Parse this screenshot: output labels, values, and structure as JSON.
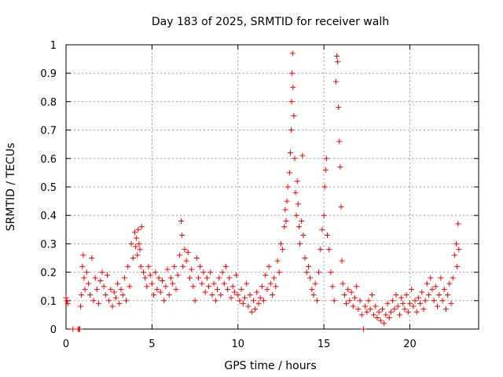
{
  "chart_data": {
    "type": "scatter",
    "title": "Day 183 of 2025, SRMTID for receiver walh",
    "xlabel": "GPS time / hours",
    "ylabel": "SRMTID / TECUs",
    "xlim": [
      0,
      24
    ],
    "ylim": [
      0,
      1
    ],
    "xticks": [
      0,
      5,
      10,
      15,
      20
    ],
    "xtick_labels": [
      "0",
      "5",
      "10",
      "15",
      "20"
    ],
    "yticks": [
      0,
      0.1,
      0.2,
      0.3,
      0.4,
      0.5,
      0.6,
      0.7,
      0.8,
      0.9,
      1
    ],
    "ytick_labels": [
      "0",
      "0.1",
      "0.2",
      "0.3",
      "0.4",
      "0.5",
      "0.6",
      "0.7",
      "0.8",
      "0.9",
      "1"
    ],
    "grid": true,
    "marker": "+",
    "color": "#ff0000",
    "series": [
      {
        "name": "SRMTID",
        "points": [
          [
            0.0,
            0.11
          ],
          [
            0.05,
            0.1
          ],
          [
            0.1,
            0.09
          ],
          [
            0.4,
            0.0
          ],
          [
            0.7,
            0.0
          ],
          [
            0.75,
            0.0
          ],
          [
            0.8,
            0.0
          ],
          [
            0.85,
            0.08
          ],
          [
            0.9,
            0.12
          ],
          [
            0.95,
            0.22
          ],
          [
            1.0,
            0.26
          ],
          [
            1.05,
            0.18
          ],
          [
            1.1,
            0.14
          ],
          [
            1.2,
            0.2
          ],
          [
            1.3,
            0.16
          ],
          [
            1.4,
            0.12
          ],
          [
            1.5,
            0.25
          ],
          [
            1.6,
            0.1
          ],
          [
            1.7,
            0.18
          ],
          [
            1.8,
            0.14
          ],
          [
            1.9,
            0.09
          ],
          [
            2.0,
            0.17
          ],
          [
            2.1,
            0.2
          ],
          [
            2.2,
            0.15
          ],
          [
            2.3,
            0.12
          ],
          [
            2.4,
            0.19
          ],
          [
            2.5,
            0.1
          ],
          [
            2.6,
            0.14
          ],
          [
            2.7,
            0.08
          ],
          [
            2.8,
            0.13
          ],
          [
            2.9,
            0.11
          ],
          [
            3.0,
            0.16
          ],
          [
            3.1,
            0.09
          ],
          [
            3.2,
            0.14
          ],
          [
            3.3,
            0.12
          ],
          [
            3.4,
            0.18
          ],
          [
            3.5,
            0.1
          ],
          [
            3.6,
            0.22
          ],
          [
            3.7,
            0.15
          ],
          [
            3.8,
            0.3
          ],
          [
            3.9,
            0.25
          ],
          [
            4.0,
            0.34
          ],
          [
            4.05,
            0.29
          ],
          [
            4.1,
            0.32
          ],
          [
            4.15,
            0.26
          ],
          [
            4.2,
            0.35
          ],
          [
            4.25,
            0.3
          ],
          [
            4.3,
            0.28
          ],
          [
            4.35,
            0.22
          ],
          [
            4.4,
            0.36
          ],
          [
            4.5,
            0.2
          ],
          [
            4.6,
            0.18
          ],
          [
            4.7,
            0.15
          ],
          [
            4.8,
            0.22
          ],
          [
            4.9,
            0.19
          ],
          [
            5.0,
            0.16
          ],
          [
            5.1,
            0.12
          ],
          [
            5.2,
            0.2
          ],
          [
            5.3,
            0.14
          ],
          [
            5.4,
            0.18
          ],
          [
            5.5,
            0.13
          ],
          [
            5.6,
            0.17
          ],
          [
            5.7,
            0.1
          ],
          [
            5.8,
            0.15
          ],
          [
            5.9,
            0.21
          ],
          [
            6.0,
            0.12
          ],
          [
            6.1,
            0.18
          ],
          [
            6.2,
            0.16
          ],
          [
            6.3,
            0.22
          ],
          [
            6.4,
            0.14
          ],
          [
            6.5,
            0.19
          ],
          [
            6.6,
            0.26
          ],
          [
            6.7,
            0.38
          ],
          [
            6.75,
            0.33
          ],
          [
            6.8,
            0.22
          ],
          [
            6.9,
            0.28
          ],
          [
            7.0,
            0.24
          ],
          [
            7.1,
            0.27
          ],
          [
            7.2,
            0.18
          ],
          [
            7.3,
            0.21
          ],
          [
            7.4,
            0.15
          ],
          [
            7.5,
            0.1
          ],
          [
            7.6,
            0.25
          ],
          [
            7.7,
            0.18
          ],
          [
            7.8,
            0.22
          ],
          [
            7.9,
            0.16
          ],
          [
            8.0,
            0.2
          ],
          [
            8.1,
            0.13
          ],
          [
            8.2,
            0.18
          ],
          [
            8.3,
            0.15
          ],
          [
            8.4,
            0.2
          ],
          [
            8.5,
            0.12
          ],
          [
            8.6,
            0.16
          ],
          [
            8.7,
            0.1
          ],
          [
            8.8,
            0.14
          ],
          [
            8.9,
            0.18
          ],
          [
            9.0,
            0.12
          ],
          [
            9.1,
            0.2
          ],
          [
            9.2,
            0.16
          ],
          [
            9.3,
            0.22
          ],
          [
            9.4,
            0.14
          ],
          [
            9.5,
            0.18
          ],
          [
            9.6,
            0.11
          ],
          [
            9.7,
            0.15
          ],
          [
            9.8,
            0.13
          ],
          [
            9.9,
            0.19
          ],
          [
            10.0,
            0.12
          ],
          [
            10.1,
            0.1
          ],
          [
            10.2,
            0.14
          ],
          [
            10.3,
            0.09
          ],
          [
            10.4,
            0.11
          ],
          [
            10.5,
            0.16
          ],
          [
            10.6,
            0.08
          ],
          [
            10.7,
            0.12
          ],
          [
            10.8,
            0.06
          ],
          [
            10.9,
            0.1
          ],
          [
            11.0,
            0.07
          ],
          [
            11.1,
            0.13
          ],
          [
            11.2,
            0.09
          ],
          [
            11.3,
            0.11
          ],
          [
            11.4,
            0.15
          ],
          [
            11.5,
            0.1
          ],
          [
            11.6,
            0.19
          ],
          [
            11.7,
            0.14
          ],
          [
            11.8,
            0.22
          ],
          [
            11.9,
            0.16
          ],
          [
            12.0,
            0.12
          ],
          [
            12.1,
            0.18
          ],
          [
            12.2,
            0.15
          ],
          [
            12.3,
            0.24
          ],
          [
            12.4,
            0.2
          ],
          [
            12.5,
            0.3
          ],
          [
            12.6,
            0.28
          ],
          [
            12.7,
            0.36
          ],
          [
            12.75,
            0.42
          ],
          [
            12.8,
            0.38
          ],
          [
            12.85,
            0.45
          ],
          [
            12.9,
            0.5
          ],
          [
            13.0,
            0.55
          ],
          [
            13.05,
            0.62
          ],
          [
            13.1,
            0.7
          ],
          [
            13.12,
            0.8
          ],
          [
            13.15,
            0.9
          ],
          [
            13.18,
            0.97
          ],
          [
            13.2,
            0.85
          ],
          [
            13.25,
            0.75
          ],
          [
            13.3,
            0.6
          ],
          [
            13.35,
            0.48
          ],
          [
            13.4,
            0.4
          ],
          [
            13.45,
            0.52
          ],
          [
            13.5,
            0.44
          ],
          [
            13.55,
            0.36
          ],
          [
            13.6,
            0.3
          ],
          [
            13.7,
            0.38
          ],
          [
            13.75,
            0.61
          ],
          [
            13.8,
            0.33
          ],
          [
            13.9,
            0.25
          ],
          [
            14.0,
            0.2
          ],
          [
            14.1,
            0.22
          ],
          [
            14.2,
            0.18
          ],
          [
            14.3,
            0.14
          ],
          [
            14.4,
            0.12
          ],
          [
            14.5,
            0.16
          ],
          [
            14.6,
            0.1
          ],
          [
            14.7,
            0.2
          ],
          [
            14.8,
            0.28
          ],
          [
            14.9,
            0.35
          ],
          [
            15.0,
            0.4
          ],
          [
            15.05,
            0.5
          ],
          [
            15.1,
            0.56
          ],
          [
            15.15,
            0.6
          ],
          [
            15.2,
            0.33
          ],
          [
            15.3,
            0.28
          ],
          [
            15.4,
            0.2
          ],
          [
            15.5,
            0.15
          ],
          [
            15.6,
            0.1
          ],
          [
            15.7,
            0.87
          ],
          [
            15.75,
            0.96
          ],
          [
            15.8,
            0.94
          ],
          [
            15.85,
            0.78
          ],
          [
            15.9,
            0.66
          ],
          [
            15.95,
            0.57
          ],
          [
            16.0,
            0.43
          ],
          [
            16.05,
            0.24
          ],
          [
            16.1,
            0.16
          ],
          [
            16.2,
            0.12
          ],
          [
            16.3,
            0.09
          ],
          [
            16.4,
            0.14
          ],
          [
            16.5,
            0.1
          ],
          [
            16.6,
            0.13
          ],
          [
            16.7,
            0.08
          ],
          [
            16.8,
            0.11
          ],
          [
            16.9,
            0.15
          ],
          [
            17.0,
            0.07
          ],
          [
            17.1,
            0.1
          ],
          [
            17.2,
            0.05
          ],
          [
            17.3,
            0.0
          ],
          [
            17.4,
            0.08
          ],
          [
            17.5,
            0.06
          ],
          [
            17.6,
            0.1
          ],
          [
            17.7,
            0.07
          ],
          [
            17.8,
            0.12
          ],
          [
            17.9,
            0.05
          ],
          [
            18.0,
            0.08
          ],
          [
            18.1,
            0.04
          ],
          [
            18.2,
            0.06
          ],
          [
            18.3,
            0.03
          ],
          [
            18.4,
            0.07
          ],
          [
            18.5,
            0.02
          ],
          [
            18.6,
            0.05
          ],
          [
            18.7,
            0.09
          ],
          [
            18.8,
            0.04
          ],
          [
            18.9,
            0.06
          ],
          [
            19.0,
            0.1
          ],
          [
            19.1,
            0.07
          ],
          [
            19.2,
            0.12
          ],
          [
            19.3,
            0.08
          ],
          [
            19.4,
            0.05
          ],
          [
            19.5,
            0.11
          ],
          [
            19.6,
            0.09
          ],
          [
            19.7,
            0.07
          ],
          [
            19.8,
            0.12
          ],
          [
            19.9,
            0.06
          ],
          [
            20.0,
            0.09
          ],
          [
            20.1,
            0.14
          ],
          [
            20.2,
            0.08
          ],
          [
            20.3,
            0.1
          ],
          [
            20.4,
            0.06
          ],
          [
            20.5,
            0.11
          ],
          [
            20.6,
            0.09
          ],
          [
            20.7,
            0.13
          ],
          [
            20.8,
            0.07
          ],
          [
            20.9,
            0.1
          ],
          [
            21.0,
            0.16
          ],
          [
            21.1,
            0.12
          ],
          [
            21.2,
            0.18
          ],
          [
            21.3,
            0.14
          ],
          [
            21.4,
            0.1
          ],
          [
            21.5,
            0.15
          ],
          [
            21.6,
            0.08
          ],
          [
            21.7,
            0.12
          ],
          [
            21.8,
            0.18
          ],
          [
            21.9,
            0.1
          ],
          [
            22.0,
            0.14
          ],
          [
            22.1,
            0.07
          ],
          [
            22.2,
            0.12
          ],
          [
            22.3,
            0.16
          ],
          [
            22.4,
            0.09
          ],
          [
            22.5,
            0.18
          ],
          [
            22.6,
            0.26
          ],
          [
            22.7,
            0.3
          ],
          [
            22.75,
            0.22
          ],
          [
            22.8,
            0.37
          ],
          [
            22.85,
            0.28
          ]
        ]
      }
    ]
  }
}
